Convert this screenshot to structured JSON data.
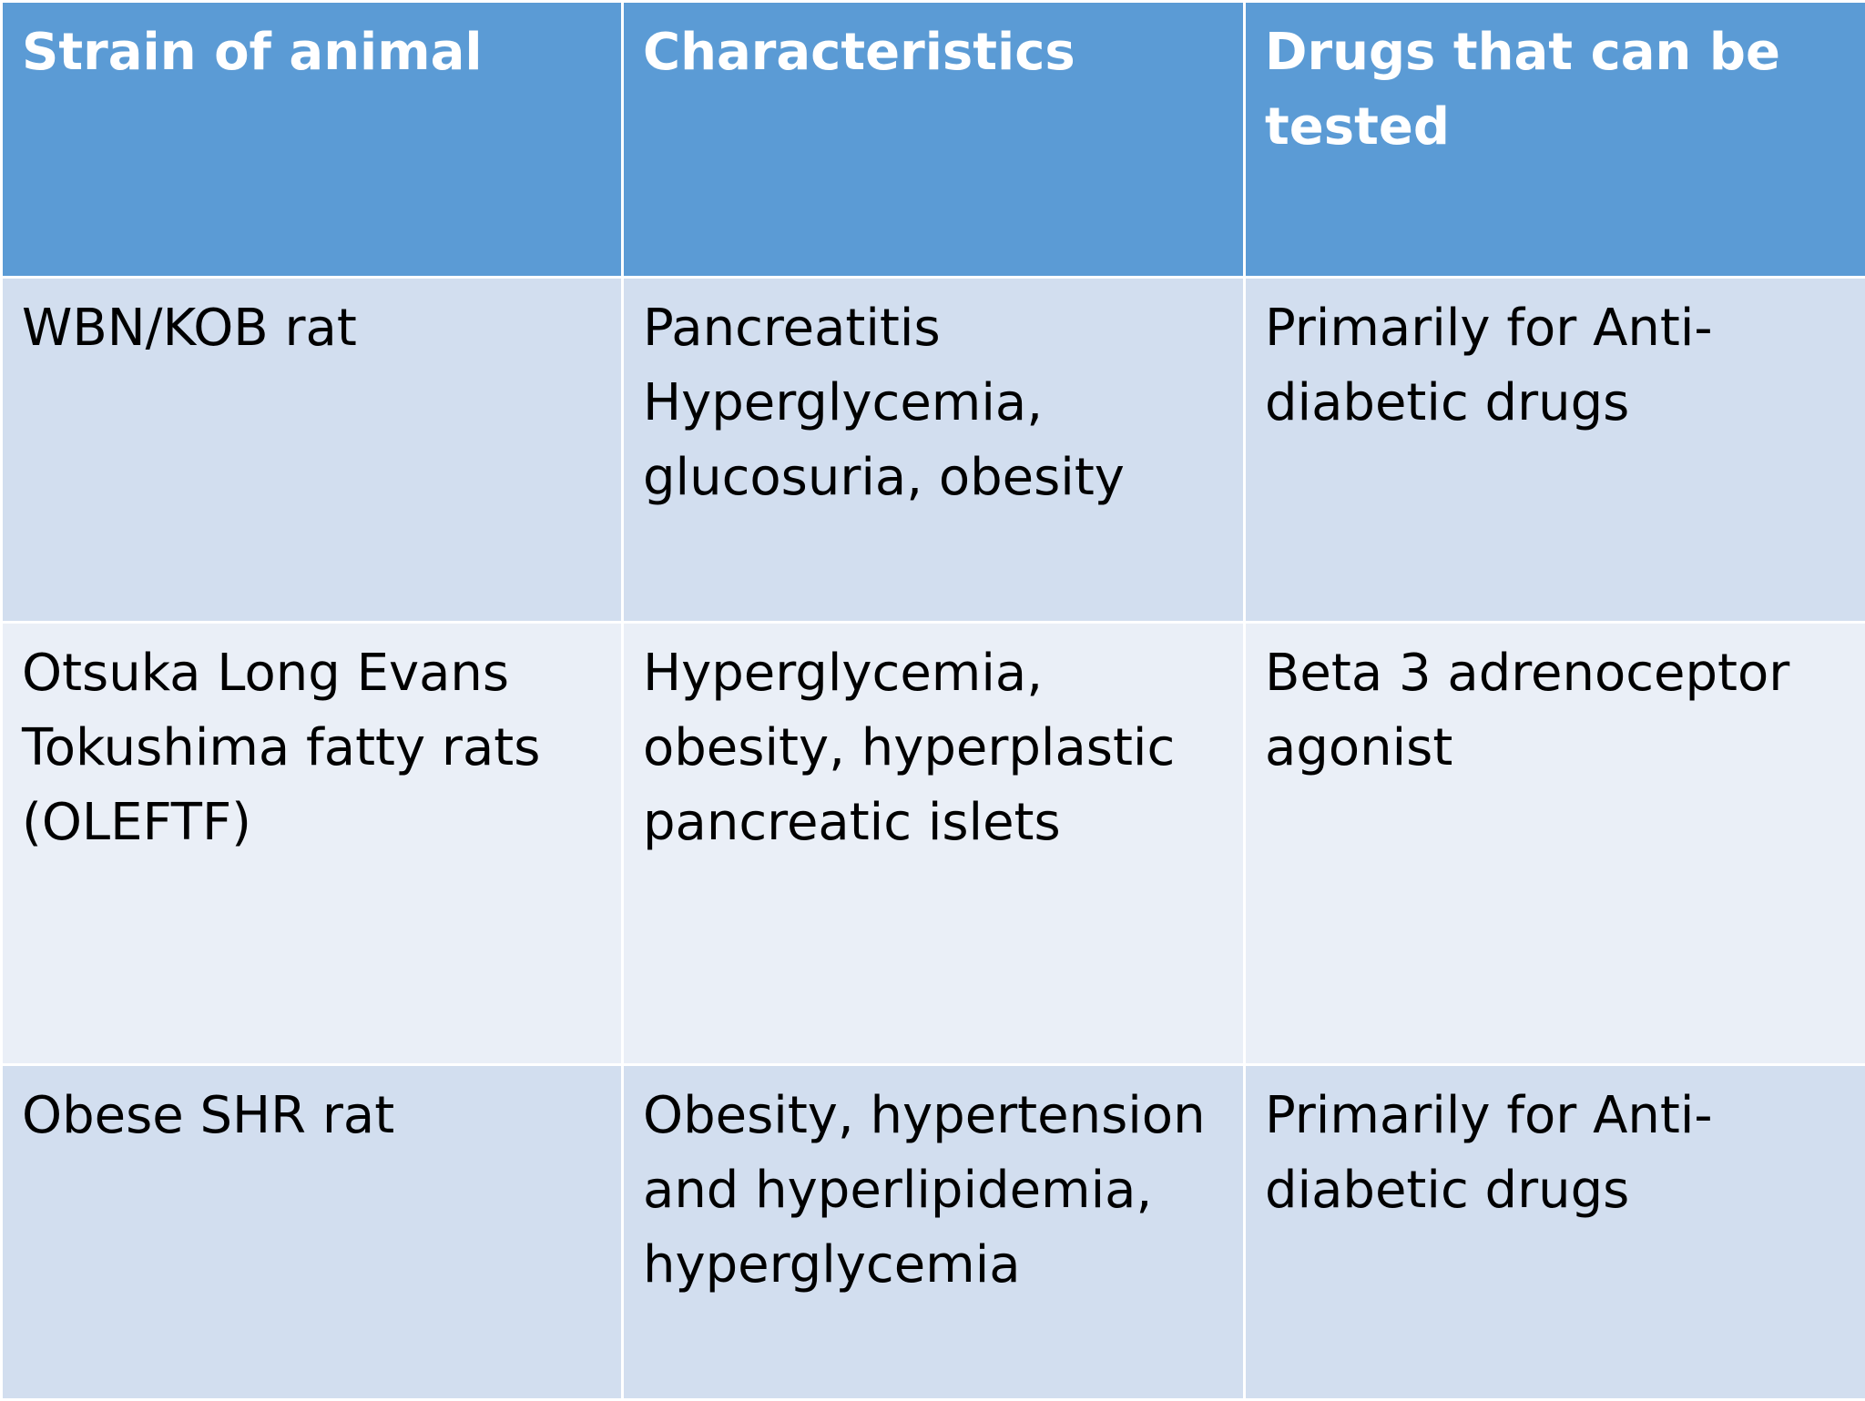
{
  "table": {
    "header": [
      [
        "Strain of animal"
      ],
      [
        "Characteristics"
      ],
      [
        "Drugs that can be",
        "tested"
      ]
    ],
    "rows": [
      [
        [
          "WBN/KOB rat"
        ],
        [
          "Pancreatitis",
          "Hyperglycemia,",
          "glucosuria, obesity"
        ],
        [
          "Primarily for Anti-",
          "diabetic drugs"
        ]
      ],
      [
        [
          "Otsuka Long Evans",
          "Tokushima fatty rats",
          "(OLEFTF)"
        ],
        [
          "Hyperglycemia,",
          "obesity, hyperplastic",
          "pancreatic islets"
        ],
        [
          "Beta 3 adrenoceptor",
          "agonist"
        ]
      ],
      [
        [
          "Obese SHR rat"
        ],
        [
          "Obesity, hypertension",
          "and hyperlipidemia,",
          "hyperglycemia"
        ],
        [
          "Primarily for Anti-",
          "diabetic drugs"
        ]
      ]
    ]
  }
}
